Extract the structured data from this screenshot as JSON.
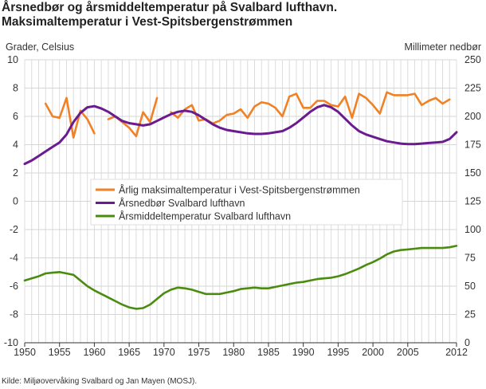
{
  "chart_data": {
    "type": "line",
    "title": "Årsnedbør og årsmiddeltemperatur på Svalbard lufthavn. Maksimaltemperatur i Vest-Spitsbergenstrømmen",
    "title_lines": [
      "Årsnedbør og årsmiddeltemperatur på Svalbard lufthavn.",
      "Maksimaltemperatur i Vest-Spitsbergenstrømmen"
    ],
    "ylabel_left": "Grader, Celsius",
    "ylabel_right": "Millimeter nedbør",
    "source": "Kilde: Miljøovervåking Svalbard og Jan Mayen (MOSJ).",
    "xlim": [
      1950,
      2012
    ],
    "ylim_left": [
      -10,
      10
    ],
    "ylim_right": [
      0,
      250
    ],
    "x_ticks": [
      "1950",
      "1955",
      "1960",
      "1965",
      "1970",
      "1975",
      "1980",
      "1985",
      "1990",
      "1995",
      "2000",
      "2005",
      "2012"
    ],
    "y_ticks_left": [
      "10",
      "8",
      "6",
      "4",
      "2",
      "0",
      "-2",
      "-4",
      "-6",
      "-8",
      "-10"
    ],
    "y_ticks_right": [
      "250",
      "225",
      "200",
      "175",
      "150",
      "125",
      "100",
      "75",
      "50",
      "25",
      "0"
    ],
    "grid": true,
    "legend_position": "center",
    "series": [
      {
        "name": "Årlig maksimaltemperatur i Vest-Spitsbergenstrømmen",
        "axis": "left",
        "color": "#f08125",
        "values": [
          null,
          null,
          null,
          6.9,
          6.0,
          5.9,
          7.3,
          4.5,
          6.4,
          5.8,
          4.8,
          null,
          5.8,
          6.0,
          5.6,
          5.2,
          4.6,
          6.3,
          5.6,
          7.3,
          null,
          6.3,
          5.9,
          6.5,
          6.8,
          5.7,
          5.8,
          5.5,
          5.7,
          6.1,
          6.2,
          6.5,
          5.9,
          6.7,
          7.0,
          6.9,
          6.6,
          6.0,
          7.4,
          7.6,
          6.6,
          6.6,
          7.1,
          7.1,
          6.8,
          6.7,
          7.4,
          5.9,
          7.6,
          7.3,
          6.8,
          6.2,
          7.7,
          7.5,
          7.5,
          7.5,
          7.6,
          6.8,
          7.1,
          7.3,
          6.9,
          7.2,
          null
        ]
      },
      {
        "name": "Årsnedbør Svalbard lufthavn",
        "axis": "right",
        "color": "#6a1b8f",
        "values": [
          158,
          161,
          165,
          169,
          173,
          177,
          184,
          195,
          203,
          208,
          209,
          207,
          204,
          200,
          196,
          194,
          193,
          192,
          193,
          196,
          199,
          202,
          204,
          205,
          204,
          201,
          197,
          193,
          190,
          188,
          187,
          186,
          185,
          184.5,
          184.5,
          185,
          186,
          187,
          190,
          194,
          199,
          204,
          208,
          210,
          208,
          204,
          198,
          192,
          187,
          184,
          182,
          180,
          178,
          177,
          176,
          175.5,
          175.5,
          176,
          176.5,
          177,
          177.5,
          180,
          186
        ]
      },
      {
        "name": "Årsmiddeltemperatur Svalbard lufthavn",
        "axis": "left",
        "color": "#4a8c10",
        "values": [
          -5.6,
          -5.45,
          -5.3,
          -5.1,
          -5.05,
          -5.0,
          -5.1,
          -5.2,
          -5.6,
          -6.0,
          -6.3,
          -6.55,
          -6.8,
          -7.05,
          -7.3,
          -7.5,
          -7.6,
          -7.55,
          -7.3,
          -6.9,
          -6.5,
          -6.25,
          -6.1,
          -6.15,
          -6.25,
          -6.4,
          -6.55,
          -6.55,
          -6.55,
          -6.45,
          -6.35,
          -6.2,
          -6.15,
          -6.1,
          -6.15,
          -6.15,
          -6.05,
          -5.95,
          -5.85,
          -5.75,
          -5.7,
          -5.6,
          -5.5,
          -5.45,
          -5.4,
          -5.3,
          -5.15,
          -4.95,
          -4.75,
          -4.5,
          -4.3,
          -4.05,
          -3.75,
          -3.55,
          -3.45,
          -3.4,
          -3.35,
          -3.3,
          -3.3,
          -3.3,
          -3.3,
          -3.25,
          -3.15
        ]
      }
    ]
  }
}
